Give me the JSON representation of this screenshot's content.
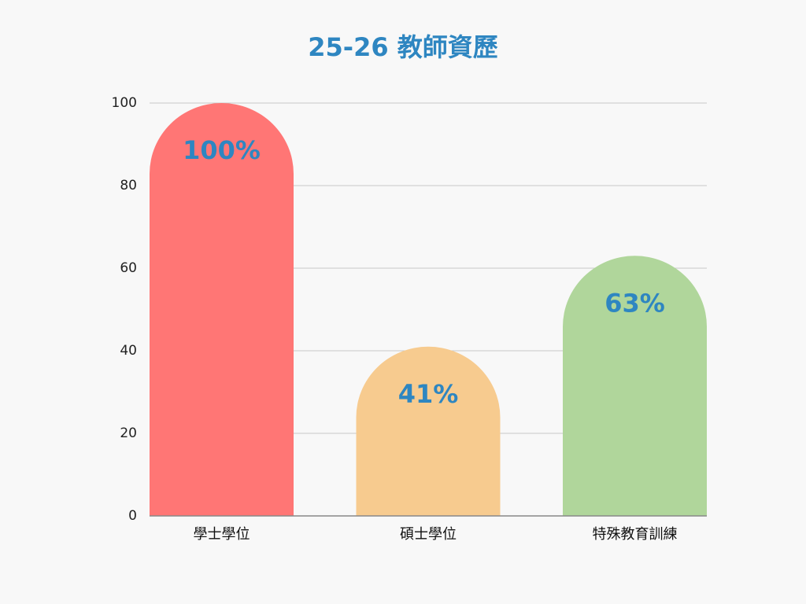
{
  "chart_data": {
    "type": "bar",
    "title": "25-26 教師資歷",
    "categories": [
      "學士學位",
      "碩士學位",
      "特殊教育訓練"
    ],
    "values": [
      100,
      41,
      63
    ],
    "value_labels": [
      "100%",
      "41%",
      "63%"
    ],
    "colors": [
      "#ff7675",
      "#f7cb8f",
      "#b0d69b"
    ],
    "ylim": [
      0,
      100
    ],
    "yticks": [
      0,
      20,
      40,
      60,
      80,
      100
    ],
    "grid": true
  }
}
